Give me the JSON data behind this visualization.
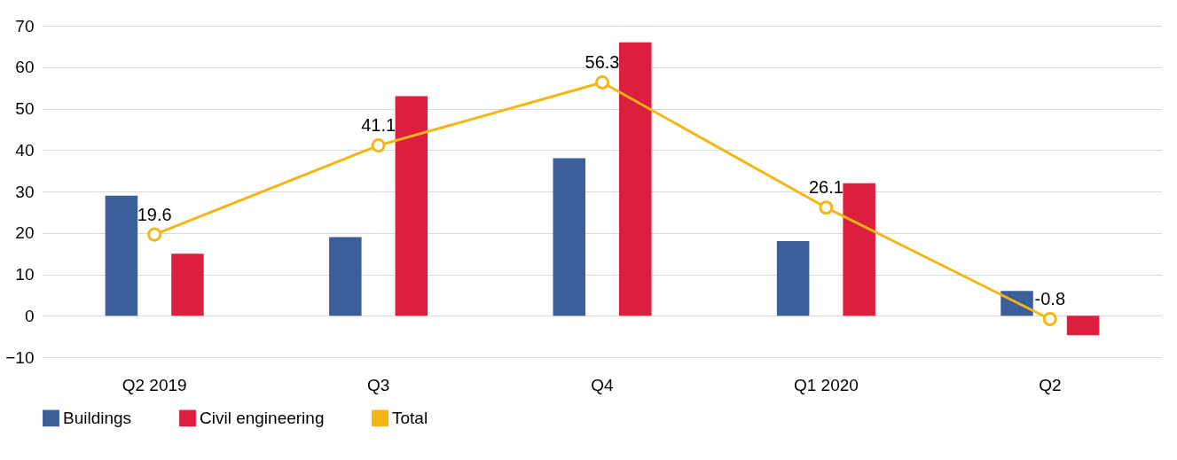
{
  "chart_data": {
    "type": "bar",
    "categories": [
      "Q2 2019",
      "Q3",
      "Q4",
      "Q1 2020",
      "Q2"
    ],
    "series": [
      {
        "name": "Buildings",
        "color": "#3c5f9a",
        "values": [
          29,
          19,
          38,
          18,
          6
        ]
      },
      {
        "name": "Civil engineering",
        "color": "#dc1f3e",
        "values": [
          15,
          53,
          66,
          32,
          -4.7
        ]
      },
      {
        "name": "Total",
        "type": "line",
        "color": "#f5b512",
        "values": [
          19.6,
          41.1,
          56.3,
          26.1,
          -0.8
        ],
        "value_labels": [
          "19.6",
          "41.1",
          "56.3",
          "26.1",
          "-0.8"
        ]
      }
    ],
    "ylim": [
      -10,
      70
    ],
    "yticks": [
      -10,
      0,
      10,
      20,
      30,
      40,
      50,
      60,
      70
    ],
    "grid": "y",
    "legend": "bottom left",
    "marker": "circle",
    "line_style": "solid"
  }
}
